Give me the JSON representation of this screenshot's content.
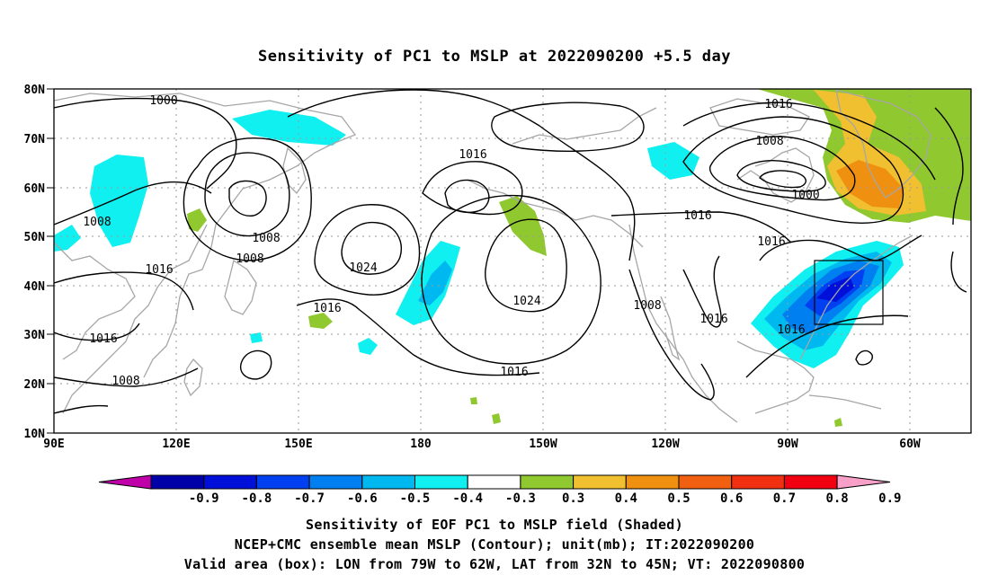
{
  "title": "Sensitivity of PC1 to MSLP at 2022090200 +5.5 day",
  "map": {
    "lat_ticks": [
      "80N",
      "70N",
      "60N",
      "50N",
      "40N",
      "30N",
      "20N",
      "10N"
    ],
    "lon_ticks": [
      "90E",
      "120E",
      "150E",
      "180",
      "150W",
      "120W",
      "90W",
      "60W"
    ],
    "contour_labels": [
      "1000",
      "1016",
      "1008",
      "1016",
      "1016",
      "1008",
      "1000",
      "1008",
      "1008",
      "1016",
      "1024",
      "1024",
      "1016",
      "1008",
      "1016",
      "1016",
      "1016",
      "1016",
      "1008",
      "1016"
    ],
    "valid_box": {
      "lon_from": "79W",
      "lon_to": "62W",
      "lat_from": "32N",
      "lat_to": "45N"
    }
  },
  "colorbar": {
    "labels": [
      "-0.9",
      "-0.8",
      "-0.7",
      "-0.6",
      "-0.5",
      "-0.4",
      "-0.3",
      "0.3",
      "0.4",
      "0.5",
      "0.6",
      "0.7",
      "0.8",
      "0.9"
    ],
    "colors": [
      "#c000a8",
      "#0000a8",
      "#0010d8",
      "#0040f0",
      "#0080f0",
      "#00b8f0",
      "#10f0f0",
      "#ffffff",
      "#90c830",
      "#f0c030",
      "#f09010",
      "#f06010",
      "#f03010",
      "#f00010",
      "#f8a0c8"
    ]
  },
  "captions": {
    "line1": "Sensitivity of EOF PC1 to MSLP field (Shaded)",
    "line2": "NCEP+CMC ensemble mean MSLP (Contour); unit(mb); IT:2022090200",
    "line3": "Valid area (box): LON from 79W to 62W, LAT from 32N to 45N; VT: 2022090800"
  }
}
